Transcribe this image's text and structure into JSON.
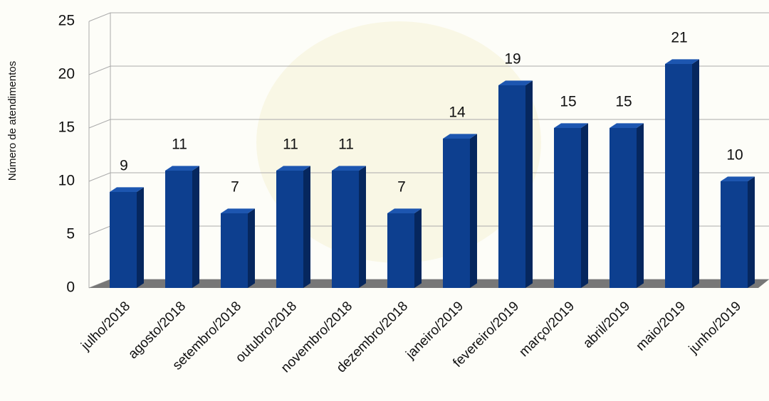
{
  "chart_data": {
    "type": "bar",
    "y_axis_label": "Número de atendimentos",
    "categories": [
      "julho/2018",
      "agosto/2018",
      "setembro/2018",
      "outubro/2018",
      "novembro/2018",
      "dezembro/2018",
      "janeiro/2019",
      "fevereiro/2019",
      "março/2019",
      "abril/2019",
      "maio/2019",
      "junho/2019"
    ],
    "values": [
      9,
      11,
      7,
      11,
      11,
      7,
      14,
      19,
      15,
      15,
      21,
      10
    ],
    "color": "#0d3f8f",
    "ylim": [
      0,
      25
    ],
    "yticks": [
      0,
      5,
      10,
      15,
      20,
      25
    ],
    "grid": true
  }
}
